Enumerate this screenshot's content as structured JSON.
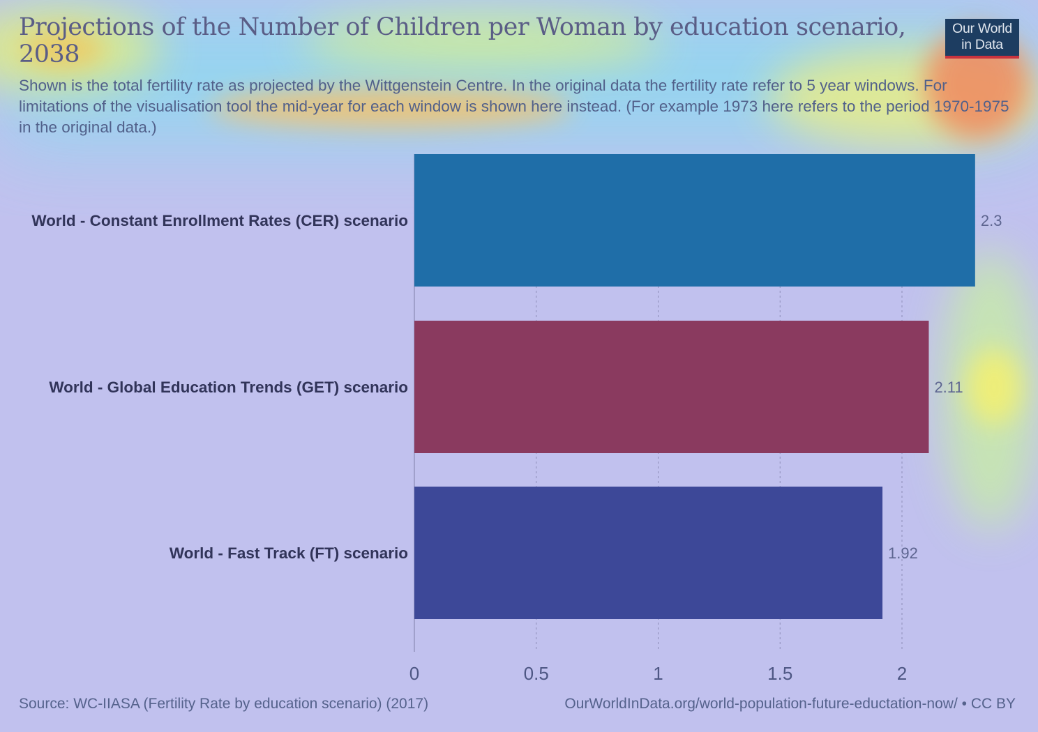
{
  "header": {
    "title": "Projections of the Number of Children per Woman by education scenario, 2038",
    "subtitle": "Shown is the total fertility rate as projected by the Wittgenstein Centre. In the original data the fertility rate refer to 5 year windows. For limitations of the visualisation tool the mid-year for each window is shown here instead. (For example 1973 here refers to the period 1970-1975 in the original data.)",
    "logo_line1": "Our World",
    "logo_line2": "in Data"
  },
  "footer": {
    "source": "Source: WC-IIASA (Fertility Rate by education scenario) (2017)",
    "url": "OurWorldInData.org/world-population-future-eductation-now/ • CC BY"
  },
  "colors": {
    "background": "#c1c1ee",
    "cer_bar": "#1f6ea8",
    "get_bar": "#8a3a5f",
    "ft_bar": "#3d4898",
    "gridline": "#8d8db8",
    "logo_bg": "#1d3d61",
    "logo_accent": "#c9333e"
  },
  "chart_data": {
    "type": "bar",
    "orientation": "horizontal",
    "title": "Projections of the Number of Children per Woman by education scenario, 2038",
    "categories": [
      "World - Constant Enrollment Rates (CER) scenario",
      "World - Global Education Trends (GET) scenario",
      "World - Fast Track (FT) scenario"
    ],
    "values": [
      2.3,
      2.11,
      1.92
    ],
    "value_labels": [
      "2.3",
      "2.11",
      "1.92"
    ],
    "bar_colors": [
      "#1f6ea8",
      "#8a3a5f",
      "#3d4898"
    ],
    "xlim": [
      0,
      2.3
    ],
    "xticks": [
      0,
      0.5,
      1,
      1.5,
      2
    ],
    "xtick_labels": [
      "0",
      "0.5",
      "1",
      "1.5",
      "2"
    ],
    "xlabel": "",
    "ylabel": "",
    "grid": "vertical dashed"
  }
}
